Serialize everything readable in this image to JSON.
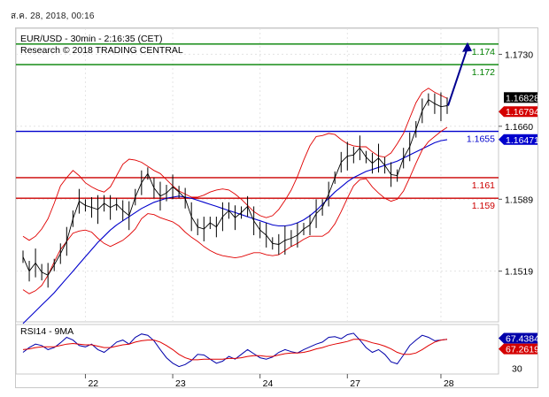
{
  "timestamp": "ส.ค. 28, 2018, 00:16",
  "colors": {
    "price": "#000000",
    "bollinger": "#e00000",
    "ma": "#0000cc",
    "resistance": "#008000",
    "pivot": "#0000cc",
    "support": "#cc0000",
    "arrow": "#000090",
    "rsi": "#0000aa",
    "rsi_ma": "#e00000"
  },
  "chart_data": [
    {
      "type": "line",
      "title": "EUR/USD - 30min - 2:16:35 (CET)",
      "subtitle": "Research © 2018 TRADING CENTRAL",
      "xlabel": "",
      "ylabel": "",
      "x_ticks": [
        "22",
        "23",
        "24",
        "27",
        "28"
      ],
      "y_ticks": [
        "1.1730",
        "1.1660",
        "1.1589",
        "1.1519"
      ],
      "ylim": [
        1.148,
        1.1745
      ],
      "grid": true,
      "price_labels": [
        {
          "text": "1.16828",
          "value": 1.16828,
          "kind": "last"
        },
        {
          "text": "1.16794",
          "value": 1.16794,
          "kind": "bid"
        },
        {
          "text": "1.16471",
          "value": 1.16471,
          "kind": "ma"
        }
      ],
      "levels": [
        {
          "label": "1.174",
          "value": 1.174,
          "kind": "resistance"
        },
        {
          "label": "1.172",
          "value": 1.172,
          "kind": "resistance"
        },
        {
          "label": "1.1655",
          "value": 1.1655,
          "kind": "pivot"
        },
        {
          "label": "1.161",
          "value": 1.161,
          "kind": "support"
        },
        {
          "label": "1.159",
          "value": 1.159,
          "kind": "support"
        }
      ],
      "series": [
        {
          "kind": "price",
          "values": [
            1.1533,
            1.1519,
            1.1527,
            1.1518,
            1.1515,
            1.1525,
            1.1536,
            1.1548,
            1.157,
            1.1587,
            1.1583,
            1.1581,
            1.1579,
            1.1585,
            1.1581,
            1.1584,
            1.1578,
            1.1573,
            1.1591,
            1.1605,
            1.1614,
            1.16,
            1.1592,
            1.1595,
            1.1601,
            1.1596,
            1.159,
            1.1572,
            1.1562,
            1.156,
            1.1566,
            1.1562,
            1.1572,
            1.1578,
            1.1571,
            1.1576,
            1.1582,
            1.1568,
            1.1559,
            1.1554,
            1.1546,
            1.1545,
            1.1549,
            1.1551,
            1.1554,
            1.156,
            1.1564,
            1.1575,
            1.1581,
            1.1594,
            1.161,
            1.1625,
            1.1631,
            1.1632,
            1.1639,
            1.163,
            1.1624,
            1.1629,
            1.1622,
            1.1613,
            1.1612,
            1.1629,
            1.164,
            1.1657,
            1.1675,
            1.1686,
            1.1682,
            1.1679,
            1.168
          ]
        },
        {
          "kind": "ma",
          "values": [
            1.1468,
            1.1474,
            1.148,
            1.1486,
            1.1492,
            1.1498,
            1.1505,
            1.1512,
            1.1519,
            1.1526,
            1.1533,
            1.154,
            1.1547,
            1.1553,
            1.1559,
            1.1564,
            1.1568,
            1.1572,
            1.1576,
            1.158,
            1.1583,
            1.1586,
            1.1588,
            1.159,
            1.1591,
            1.1592,
            1.1591,
            1.159,
            1.1588,
            1.1586,
            1.1584,
            1.1582,
            1.158,
            1.1578,
            1.1576,
            1.1574,
            1.1572,
            1.157,
            1.1568,
            1.1566,
            1.1564,
            1.1563,
            1.1563,
            1.1564,
            1.1566,
            1.1569,
            1.1573,
            1.1578,
            1.1584,
            1.159,
            1.1596,
            1.1601,
            1.1606,
            1.161,
            1.1613,
            1.1616,
            1.1618,
            1.162,
            1.1622,
            1.1624,
            1.1626,
            1.1629,
            1.1632,
            1.1635,
            1.1638,
            1.1641,
            1.1644,
            1.1646,
            1.1647
          ]
        },
        {
          "kind": "bollinger-upper",
          "values": [
            1.1553,
            1.1549,
            1.1553,
            1.156,
            1.157,
            1.1585,
            1.1602,
            1.161,
            1.1617,
            1.1612,
            1.1605,
            1.1601,
            1.1598,
            1.1596,
            1.1601,
            1.1612,
            1.1623,
            1.1628,
            1.1627,
            1.1625,
            1.1621,
            1.1617,
            1.1614,
            1.1608,
            1.1602,
            1.1597,
            1.1594,
            1.1591,
            1.1591,
            1.1593,
            1.1596,
            1.1598,
            1.1599,
            1.1598,
            1.1594,
            1.1589,
            1.1583,
            1.1577,
            1.1573,
            1.1571,
            1.1573,
            1.1579,
            1.1588,
            1.1598,
            1.1611,
            1.1627,
            1.1641,
            1.165,
            1.1651,
            1.1653,
            1.1652,
            1.1647,
            1.1643,
            1.1641,
            1.164,
            1.164,
            1.1635,
            1.1631,
            1.163,
            1.1634,
            1.1643,
            1.1653,
            1.1668,
            1.1683,
            1.1693,
            1.1697,
            1.1693,
            1.169,
            1.1687
          ]
        },
        {
          "kind": "bollinger-lower",
          "values": [
            1.1501,
            1.1497,
            1.15,
            1.1505,
            1.1515,
            1.1528,
            1.154,
            1.1548,
            1.1556,
            1.1558,
            1.1559,
            1.1557,
            1.1551,
            1.1546,
            1.1543,
            1.1546,
            1.1549,
            1.1554,
            1.156,
            1.157,
            1.1575,
            1.1574,
            1.1571,
            1.1569,
            1.1567,
            1.1563,
            1.1557,
            1.1552,
            1.1548,
            1.1543,
            1.1539,
            1.1536,
            1.1534,
            1.1533,
            1.1532,
            1.1533,
            1.1535,
            1.1537,
            1.1537,
            1.1535,
            1.1534,
            1.1535,
            1.1539,
            1.1543,
            1.1546,
            1.155,
            1.1553,
            1.1553,
            1.1553,
            1.1557,
            1.1565,
            1.1577,
            1.159,
            1.1602,
            1.1608,
            1.1609,
            1.1601,
            1.1595,
            1.159,
            1.1587,
            1.1589,
            1.1597,
            1.161,
            1.1624,
            1.1637,
            1.1645,
            1.165,
            1.1655,
            1.1659
          ]
        }
      ],
      "projection": {
        "from": 1.168,
        "to": 1.174
      }
    },
    {
      "type": "line",
      "title": "RSI14 - 9MA",
      "y_ticks": [
        "30"
      ],
      "ylim": [
        20,
        85
      ],
      "price_labels": [
        {
          "text": "67.4384",
          "value": 67.4384,
          "kind": "rsi"
        },
        {
          "text": "67.2619",
          "value": 67.2619,
          "kind": "rsi_ma"
        }
      ],
      "series": [
        {
          "kind": "rsi",
          "values": [
            48,
            55,
            60,
            58,
            52,
            55,
            62,
            70,
            66,
            58,
            56,
            60,
            52,
            48,
            55,
            63,
            66,
            60,
            70,
            75,
            73,
            65,
            52,
            40,
            32,
            27,
            30,
            36,
            45,
            44,
            38,
            32,
            35,
            42,
            38,
            45,
            52,
            46,
            40,
            38,
            41,
            48,
            52,
            49,
            47,
            52,
            56,
            60,
            63,
            70,
            71,
            68,
            74,
            76,
            66,
            55,
            48,
            52,
            45,
            34,
            31,
            44,
            58,
            66,
            73,
            70,
            65,
            66,
            67
          ]
        },
        {
          "kind": "rsi-ma",
          "values": [
            52,
            53,
            55,
            56,
            56,
            56,
            58,
            60,
            61,
            60,
            59,
            59,
            57,
            55,
            55,
            57,
            59,
            60,
            63,
            65,
            66,
            66,
            63,
            58,
            52,
            45,
            40,
            37,
            37,
            38,
            38,
            38,
            38,
            39,
            39,
            40,
            42,
            43,
            43,
            42,
            42,
            44,
            46,
            47,
            47,
            48,
            50,
            53,
            55,
            58,
            60,
            62,
            64,
            67,
            67,
            65,
            62,
            60,
            57,
            53,
            48,
            45,
            45,
            47,
            52,
            58,
            63,
            66,
            67
          ]
        }
      ]
    }
  ]
}
